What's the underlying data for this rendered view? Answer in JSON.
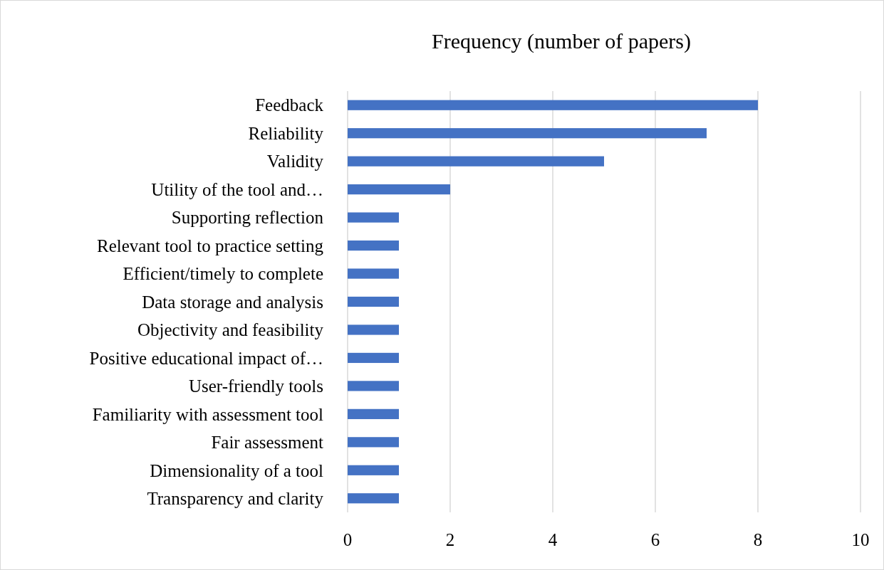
{
  "chart_data": {
    "type": "bar",
    "orientation": "horizontal",
    "title": "Frequency (number of papers)",
    "categories": [
      "Feedback",
      "Reliability",
      "Validity",
      "Utility of the tool and…",
      "Supporting reflection",
      "Relevant tool to practice setting",
      "Efficient/timely to complete",
      "Data storage and analysis",
      "Objectivity and feasibility",
      "Positive educational impact of…",
      "User-friendly tools",
      "Familiarity with assessment tool",
      "Fair assessment",
      "Dimensionality of a tool",
      "Transparency and clarity"
    ],
    "values": [
      8,
      7,
      5,
      2,
      1,
      1,
      1,
      1,
      1,
      1,
      1,
      1,
      1,
      1,
      1
    ],
    "color": "#4472c4",
    "xlim": [
      0,
      10
    ],
    "xticks": [
      0,
      2,
      4,
      6,
      8,
      10
    ],
    "grid": "x"
  }
}
